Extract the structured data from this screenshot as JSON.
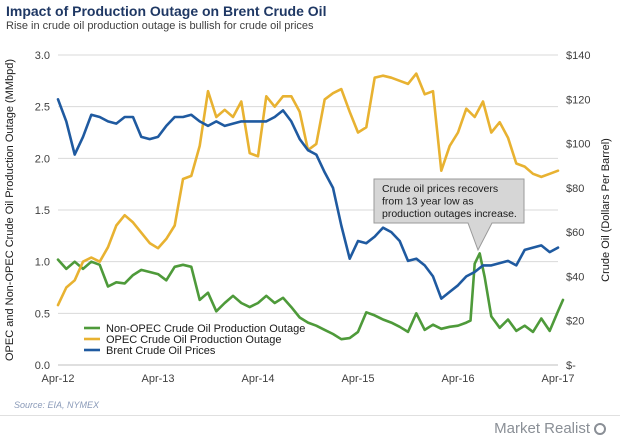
{
  "chart_data": {
    "type": "line",
    "title": "Impact of Production Outage on Brent Crude Oil",
    "subtitle": "Rise in crude oil production outage is bullish for crude oil prices",
    "ylabel_left": "OPEC and Non-OPEC Crude Oil Production Outage (MMbpd)",
    "ylabel_right": "Crude Oil (Dollars Per Barrel)",
    "ylim_left": [
      0,
      3.0
    ],
    "ylim_right": [
      0,
      140
    ],
    "y_ticks_left": [
      "0.0",
      "0.5",
      "1.0",
      "1.5",
      "2.0",
      "2.5",
      "3.0"
    ],
    "y_ticks_right": [
      "$-",
      "$20",
      "$40",
      "$60",
      "$80",
      "$100",
      "$120",
      "$140"
    ],
    "x_ticks": [
      "Apr-12",
      "Apr-13",
      "Apr-14",
      "Apr-15",
      "Apr-16",
      "Apr-17"
    ],
    "x_range_months": [
      0,
      60
    ],
    "series": [
      {
        "name": "Non-OPEC Crude Oil Production Outage",
        "color": "#4e9a3a",
        "axis": "left",
        "values": [
          [
            0,
            1.02
          ],
          [
            1,
            0.93
          ],
          [
            2,
            1.0
          ],
          [
            3,
            0.93
          ],
          [
            4,
            1.0
          ],
          [
            5,
            0.97
          ],
          [
            6,
            0.76
          ],
          [
            7,
            0.8
          ],
          [
            8,
            0.79
          ],
          [
            9,
            0.87
          ],
          [
            10,
            0.92
          ],
          [
            11,
            0.9
          ],
          [
            12,
            0.88
          ],
          [
            13,
            0.82
          ],
          [
            14,
            0.95
          ],
          [
            15,
            0.97
          ],
          [
            16,
            0.95
          ],
          [
            17,
            0.63
          ],
          [
            18,
            0.7
          ],
          [
            19,
            0.52
          ],
          [
            20,
            0.6
          ],
          [
            21,
            0.67
          ],
          [
            22,
            0.6
          ],
          [
            23,
            0.56
          ],
          [
            24,
            0.6
          ],
          [
            25,
            0.67
          ],
          [
            26,
            0.6
          ],
          [
            27,
            0.65
          ],
          [
            28,
            0.56
          ],
          [
            29,
            0.46
          ],
          [
            30,
            0.41
          ],
          [
            31,
            0.38
          ],
          [
            32,
            0.34
          ],
          [
            33,
            0.3
          ],
          [
            34,
            0.25
          ],
          [
            35,
            0.26
          ],
          [
            36,
            0.32
          ],
          [
            37,
            0.51
          ],
          [
            38,
            0.48
          ],
          [
            39,
            0.44
          ],
          [
            40,
            0.41
          ],
          [
            41,
            0.37
          ],
          [
            42,
            0.32
          ],
          [
            43,
            0.5
          ],
          [
            44,
            0.34
          ],
          [
            45,
            0.39
          ],
          [
            46,
            0.35
          ],
          [
            47,
            0.37
          ],
          [
            48,
            0.38
          ],
          [
            49,
            0.41
          ],
          [
            49.5,
            0.43
          ],
          [
            50,
            0.98
          ],
          [
            50.6,
            1.08
          ],
          [
            51.2,
            0.85
          ],
          [
            52,
            0.47
          ],
          [
            53,
            0.36
          ],
          [
            54,
            0.44
          ],
          [
            55,
            0.33
          ],
          [
            56,
            0.38
          ],
          [
            57,
            0.32
          ],
          [
            58,
            0.45
          ],
          [
            59,
            0.33
          ],
          [
            60,
            0.52
          ],
          [
            60.6,
            0.63
          ]
        ]
      },
      {
        "name": "OPEC Crude Oil Production Outage",
        "color": "#e8b231",
        "axis": "left",
        "values": [
          [
            0,
            0.58
          ],
          [
            1,
            0.75
          ],
          [
            2,
            0.82
          ],
          [
            3,
            1.0
          ],
          [
            4,
            1.04
          ],
          [
            5,
            1.0
          ],
          [
            6,
            1.14
          ],
          [
            7,
            1.35
          ],
          [
            8,
            1.45
          ],
          [
            9,
            1.38
          ],
          [
            10,
            1.28
          ],
          [
            11,
            1.18
          ],
          [
            12,
            1.13
          ],
          [
            13,
            1.22
          ],
          [
            14,
            1.35
          ],
          [
            15,
            1.8
          ],
          [
            16,
            1.83
          ],
          [
            17,
            2.12
          ],
          [
            18,
            2.65
          ],
          [
            19,
            2.4
          ],
          [
            20,
            2.47
          ],
          [
            21,
            2.4
          ],
          [
            22,
            2.55
          ],
          [
            23,
            2.05
          ],
          [
            24,
            2.02
          ],
          [
            25,
            2.6
          ],
          [
            26,
            2.5
          ],
          [
            27,
            2.6
          ],
          [
            28,
            2.6
          ],
          [
            29,
            2.45
          ],
          [
            30,
            2.08
          ],
          [
            31,
            2.14
          ],
          [
            32,
            2.57
          ],
          [
            33,
            2.63
          ],
          [
            34,
            2.67
          ],
          [
            35,
            2.45
          ],
          [
            36,
            2.25
          ],
          [
            37,
            2.3
          ],
          [
            38,
            2.78
          ],
          [
            39,
            2.8
          ],
          [
            40,
            2.78
          ],
          [
            41,
            2.75
          ],
          [
            42,
            2.72
          ],
          [
            43,
            2.82
          ],
          [
            44,
            2.62
          ],
          [
            45,
            2.65
          ],
          [
            46,
            1.88
          ],
          [
            47,
            2.12
          ],
          [
            48,
            2.25
          ],
          [
            49,
            2.48
          ],
          [
            50,
            2.4
          ],
          [
            51,
            2.55
          ],
          [
            52,
            2.25
          ],
          [
            53,
            2.35
          ],
          [
            54,
            2.2
          ],
          [
            55,
            1.95
          ],
          [
            56,
            1.92
          ],
          [
            57,
            1.85
          ],
          [
            58,
            1.82
          ],
          [
            59,
            1.85
          ],
          [
            60,
            1.88
          ]
        ]
      },
      {
        "name": "Brent Crude Oil Prices",
        "color": "#1f5aa0",
        "axis": "right",
        "values": [
          [
            0,
            120
          ],
          [
            1,
            110
          ],
          [
            2,
            95
          ],
          [
            3,
            103
          ],
          [
            4,
            113
          ],
          [
            5,
            112
          ],
          [
            6,
            110
          ],
          [
            7,
            109
          ],
          [
            8,
            112
          ],
          [
            9,
            112
          ],
          [
            10,
            103
          ],
          [
            11,
            102
          ],
          [
            12,
            103
          ],
          [
            13,
            108
          ],
          [
            14,
            112
          ],
          [
            15,
            112
          ],
          [
            16,
            113
          ],
          [
            17,
            110
          ],
          [
            18,
            108
          ],
          [
            19,
            110
          ],
          [
            20,
            108
          ],
          [
            21,
            109
          ],
          [
            22,
            110
          ],
          [
            23,
            110
          ],
          [
            24,
            110
          ],
          [
            25,
            110
          ],
          [
            26,
            112
          ],
          [
            27,
            115
          ],
          [
            28,
            110
          ],
          [
            29,
            102
          ],
          [
            30,
            97
          ],
          [
            31,
            95
          ],
          [
            32,
            87
          ],
          [
            33,
            80
          ],
          [
            34,
            63
          ],
          [
            35,
            48
          ],
          [
            36,
            56
          ],
          [
            37,
            55
          ],
          [
            38,
            58
          ],
          [
            39,
            62
          ],
          [
            40,
            60
          ],
          [
            41,
            56
          ],
          [
            42,
            47
          ],
          [
            43,
            48
          ],
          [
            44,
            45
          ],
          [
            45,
            40
          ],
          [
            46,
            30
          ],
          [
            47,
            33
          ],
          [
            48,
            36
          ],
          [
            49,
            40
          ],
          [
            50,
            42
          ],
          [
            51,
            45
          ],
          [
            52,
            45
          ],
          [
            53,
            46
          ],
          [
            54,
            47
          ],
          [
            55,
            45
          ],
          [
            56,
            52
          ],
          [
            57,
            53
          ],
          [
            58,
            54
          ],
          [
            59,
            51
          ],
          [
            60,
            53
          ]
        ]
      }
    ],
    "annotation": "Crude oil prices recovers from 13 year low as production outages increase.",
    "legend_position": "bottom-left",
    "grid": true
  },
  "footer": {
    "source": "Source: EIA, NYMEX",
    "brand": "Market Realist"
  }
}
